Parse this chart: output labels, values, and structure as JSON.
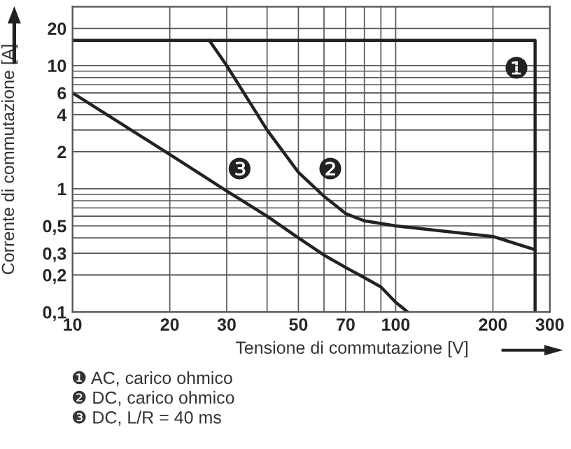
{
  "chart_data": {
    "type": "line",
    "xlabel": "Tensione di commutazione [V]",
    "ylabel": "Corrente di commutazione [A]",
    "log": "xy",
    "xlim": [
      10,
      300
    ],
    "ylim": [
      0.1,
      30
    ],
    "xticks": [
      10,
      20,
      30,
      {
        "value": 40,
        "label": null
      },
      50,
      {
        "value": 60,
        "label": null
      },
      70,
      {
        "value": 80,
        "label": null
      },
      {
        "value": 90,
        "label": null
      },
      100,
      200,
      300
    ],
    "yticks": [
      {
        "value": 0.1,
        "label": "0,1"
      },
      {
        "value": 0.2,
        "label": "0,2"
      },
      {
        "value": 0.3,
        "label": "0,3"
      },
      {
        "value": 0.4,
        "label": null
      },
      {
        "value": 0.5,
        "label": "0,5"
      },
      {
        "value": 0.6,
        "label": null
      },
      {
        "value": 0.7,
        "label": null
      },
      {
        "value": 0.8,
        "label": null
      },
      {
        "value": 0.9,
        "label": null
      },
      1,
      2,
      {
        "value": 3,
        "label": null
      },
      4,
      {
        "value": 5,
        "label": null
      },
      6,
      {
        "value": 7,
        "label": null
      },
      {
        "value": 8,
        "label": null
      },
      {
        "value": 9,
        "label": null
      },
      10,
      20
    ],
    "grid": true,
    "line_style": "solid",
    "marker": "none",
    "series": [
      {
        "name": "❶",
        "color": "#222222",
        "x": [
          10,
          270,
          270
        ],
        "values": [
          16,
          16,
          0.1
        ]
      },
      {
        "name": "❷",
        "color": "#222222",
        "x": [
          26.5,
          30,
          40,
          50,
          60,
          70,
          80,
          100,
          200,
          270
        ],
        "values": [
          16,
          10,
          3.0,
          1.36,
          0.87,
          0.63,
          0.55,
          0.5,
          0.41,
          0.32
        ]
      },
      {
        "name": "❸",
        "color": "#222222",
        "x": [
          10,
          20,
          30,
          40,
          50,
          60,
          70,
          80,
          90,
          100,
          109
        ],
        "values": [
          6,
          1.9,
          0.96,
          0.6,
          0.4,
          0.29,
          0.23,
          0.19,
          0.16,
          0.12,
          0.1
        ]
      }
    ],
    "annotations": [
      "❶ AC, carico ohmico",
      "❷ DC, carico ohmico",
      "❸ DC, L/R = 40 ms"
    ]
  }
}
